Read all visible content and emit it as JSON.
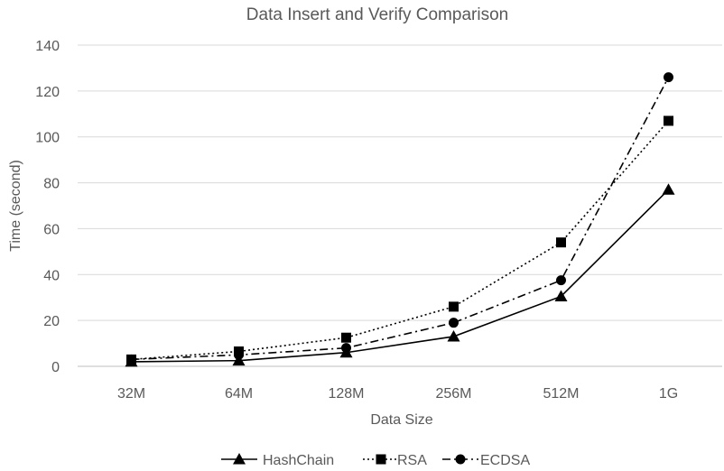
{
  "chart_data": {
    "type": "line",
    "title": "Data Insert and Verify Comparison",
    "xlabel": "Data Size",
    "ylabel": "Time (second)",
    "categories": [
      "32M",
      "64M",
      "128M",
      "256M",
      "512M",
      "1G"
    ],
    "ylim": [
      0,
      140
    ],
    "yticks": [
      0,
      20,
      40,
      60,
      80,
      100,
      120,
      140
    ],
    "grid": true,
    "legend_position": "bottom",
    "series": [
      {
        "name": "HashChain",
        "marker": "triangle",
        "line_style": "solid",
        "color": "#000000",
        "values": [
          2,
          2.5,
          6,
          13,
          30.5,
          77
        ]
      },
      {
        "name": "RSA",
        "marker": "square",
        "line_style": "dotted",
        "color": "#000000",
        "values": [
          3,
          6.5,
          12.5,
          26,
          54,
          107
        ]
      },
      {
        "name": "ECDSA",
        "marker": "circle",
        "line_style": "dash-dot",
        "color": "#000000",
        "values": [
          3,
          5,
          8,
          19,
          37.5,
          126
        ]
      }
    ]
  }
}
